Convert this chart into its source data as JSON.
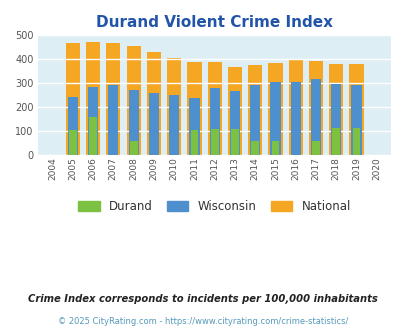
{
  "title": "Durand Violent Crime Index",
  "years": [
    2004,
    2005,
    2006,
    2007,
    2008,
    2009,
    2010,
    2011,
    2012,
    2013,
    2014,
    2015,
    2016,
    2017,
    2018,
    2019,
    2020
  ],
  "durand": [
    0,
    105,
    160,
    0,
    58,
    0,
    0,
    105,
    110,
    110,
    60,
    60,
    0,
    60,
    112,
    112,
    0
  ],
  "wisconsin": [
    0,
    245,
    285,
    292,
    273,
    260,
    250,
    240,
    280,
    270,
    292,
    306,
    306,
    318,
    298,
    294,
    0
  ],
  "national": [
    0,
    470,
    473,
    467,
    455,
    432,
    405,
    388,
    388,
    367,
    377,
    383,
    398,
    394,
    380,
    380,
    0
  ],
  "durand_color": "#7dc142",
  "wisconsin_color": "#4e8fce",
  "national_color": "#f5a623",
  "bg_color": "#deeef5",
  "ylim": [
    0,
    500
  ],
  "yticks": [
    0,
    100,
    200,
    300,
    400,
    500
  ],
  "legend_labels": [
    "Durand",
    "Wisconsin",
    "National"
  ],
  "footnote1": "Crime Index corresponds to incidents per 100,000 inhabitants",
  "footnote2": "© 2025 CityRating.com - https://www.cityrating.com/crime-statistics/",
  "title_color": "#2255aa",
  "footnote1_color": "#222222",
  "footnote2_color": "#5599bb",
  "bar_width": 0.7,
  "figsize": [
    4.06,
    3.3
  ],
  "dpi": 100
}
